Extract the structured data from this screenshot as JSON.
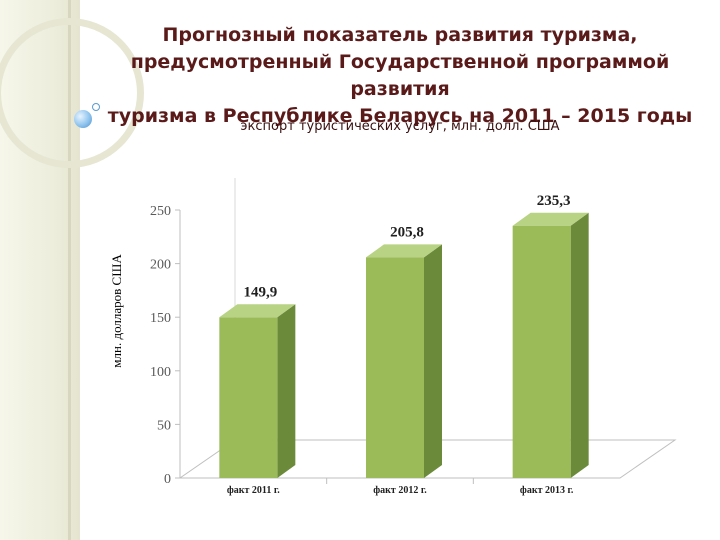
{
  "slide": {
    "title_lines": [
      "Прогнозный показатель развития туризма,",
      "предусмотренный Государственной программой развития",
      "туризма в Республике Беларусь на 2011 – 2015 годы"
    ],
    "subtitle": "экспорт туристических услуг, млн. долл. США"
  },
  "chart_data": {
    "type": "bar",
    "title": "",
    "ylabel": "млн. долларов США",
    "xlabel": "",
    "categories": [
      "факт 2011 г.",
      "факт 2012 г.",
      "факт 2013 г."
    ],
    "values": [
      149.9,
      205.8,
      235.3
    ],
    "value_labels": [
      "149,9",
      "205,8",
      "235,3"
    ],
    "yticks": [
      0,
      50,
      100,
      150,
      200,
      250
    ],
    "ylim": [
      0,
      250
    ],
    "grid": false,
    "legend": "none",
    "style": "3d",
    "colors": {
      "front": "#9bbb59",
      "side": "#6b8a3a",
      "top": "#b7d383"
    }
  }
}
